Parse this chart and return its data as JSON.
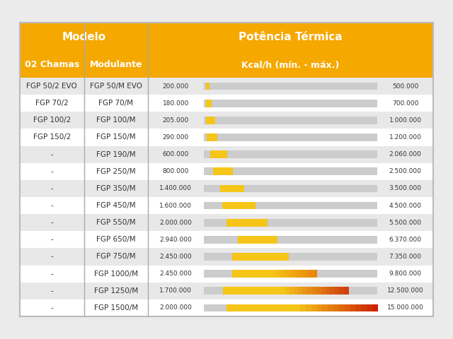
{
  "title_modelo": "Modelo",
  "title_potencia": "Potência Térmica",
  "subtitle_col1": "02 Chamas",
  "subtitle_col2": "Modulante",
  "subtitle_col3": "Kcal/h (mín. - máx.)",
  "rows": [
    {
      "col1": "FGP 50/2 EVO",
      "col2": "FGP 50/M EVO",
      "min": 200000,
      "max": 500000
    },
    {
      "col1": "FGP 70/2",
      "col2": "FGP 70/M",
      "min": 180000,
      "max": 700000
    },
    {
      "col1": "FGP 100/2",
      "col2": "FGP 100/M",
      "min": 205000,
      "max": 1000000
    },
    {
      "col1": "FGP 150/2",
      "col2": "FGP 150/M",
      "min": 290000,
      "max": 1200000
    },
    {
      "col1": "-",
      "col2": "FGP 190/M",
      "min": 600000,
      "max": 2060000
    },
    {
      "col1": "-",
      "col2": "FGP 250/M",
      "min": 800000,
      "max": 2500000
    },
    {
      "col1": "-",
      "col2": "FGP 350/M",
      "min": 1400000,
      "max": 3500000
    },
    {
      "col1": "-",
      "col2": "FGP 450/M",
      "min": 1600000,
      "max": 4500000
    },
    {
      "col1": "-",
      "col2": "FGP 550/M",
      "min": 2000000,
      "max": 5500000
    },
    {
      "col1": "-",
      "col2": "FGP 650/M",
      "min": 2940000,
      "max": 6370000
    },
    {
      "col1": "-",
      "col2": "FGP 750/M",
      "min": 2450000,
      "max": 7350000
    },
    {
      "col1": "-",
      "col2": "FGP 1000/M",
      "min": 2450000,
      "max": 9800000
    },
    {
      "col1": "-",
      "col2": "FGP 1250/M",
      "min": 1700000,
      "max": 12500000
    },
    {
      "col1": "-",
      "col2": "FGP 1500/M",
      "min": 2000000,
      "max": 15000000
    }
  ],
  "bar_color_start": "#f5c518",
  "bar_colors_end": [
    "#f5c518",
    "#f5c518",
    "#f5c518",
    "#f5c518",
    "#f5c518",
    "#f5c518",
    "#f5c518",
    "#f5c518",
    "#f5c518",
    "#f5c518",
    "#f5c518",
    "#e8850a",
    "#d04010",
    "#cc2200"
  ],
  "header_bg": "#f5a800",
  "row_bg_even": "#e8e8e8",
  "row_bg_odd": "#ffffff",
  "bar_bg": "#cccccc",
  "divider_color": "#aaaaaa",
  "text_color_body": "#333333",
  "fig_bg": "#ebebeb"
}
